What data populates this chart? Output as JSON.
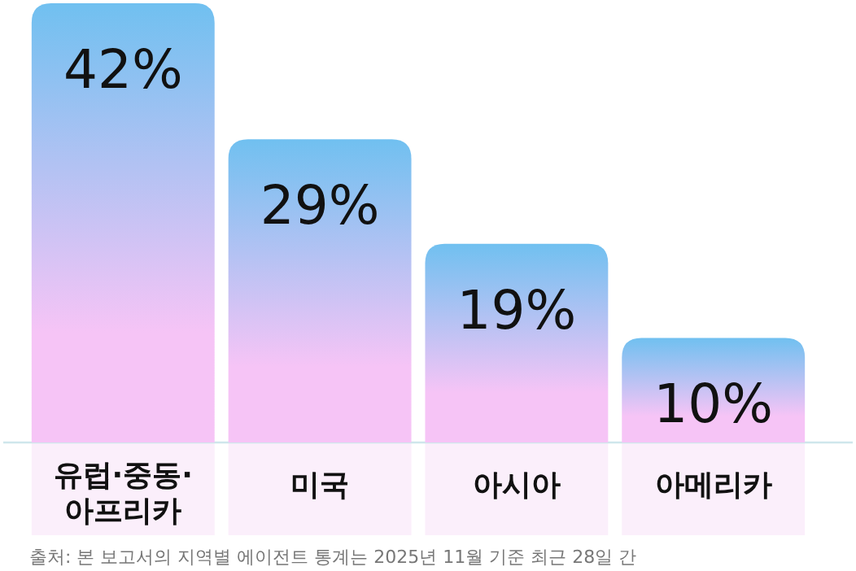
{
  "chart_data": {
    "type": "bar",
    "categories": [
      "유럽·중동·아프리카",
      "미국",
      "아시아",
      "아메리카"
    ],
    "values": [
      42,
      29,
      19,
      10
    ],
    "color": "#70c0f0",
    "value_labels": [
      "42%",
      "29%",
      "19%",
      "10%"
    ],
    "annotations": [
      "출처: 본 보고서의 지역별 에이전트 통계는 2025년 11월 기준 최근 28일 간"
    ]
  }
}
